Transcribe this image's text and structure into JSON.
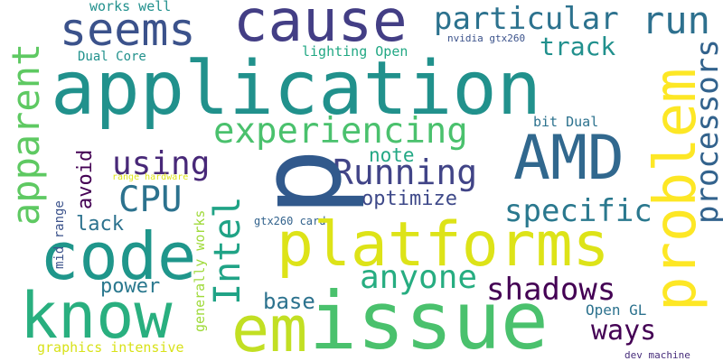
{
  "words": [
    {
      "text": "cause",
      "color": "#433e85"
    },
    {
      "text": "seems",
      "color": "#3b528b"
    },
    {
      "text": "particular",
      "color": "#2c728e"
    },
    {
      "text": "works well",
      "color": "#21908d"
    },
    {
      "text": "run",
      "color": "#2d708e"
    },
    {
      "text": "track",
      "color": "#21908d"
    },
    {
      "text": "nvidia gtx260",
      "color": "#3b528b"
    },
    {
      "text": "Dual Core",
      "color": "#21918c"
    },
    {
      "text": "lighting Open",
      "color": "#22a884"
    },
    {
      "text": "application",
      "color": "#21918c"
    },
    {
      "text": "problem",
      "color": "#fde725"
    },
    {
      "text": "experiencing",
      "color": "#4ac16d"
    },
    {
      "text": "processors",
      "color": "#33638d"
    },
    {
      "text": "apparent",
      "color": "#5ec962"
    },
    {
      "text": "avoid",
      "color": "#440154"
    },
    {
      "text": "mid range",
      "color": "#3b528b"
    },
    {
      "text": "range hardware",
      "color": "#dde318"
    },
    {
      "text": "note",
      "color": "#22a884"
    },
    {
      "text": "bit Dual",
      "color": "#2c728e"
    },
    {
      "text": "AMD",
      "color": "#31688e"
    },
    {
      "text": "p",
      "color": "#31598c"
    },
    {
      "text": "using",
      "color": "#482878"
    },
    {
      "text": "Running",
      "color": "#414487"
    },
    {
      "text": "CPU",
      "color": "#2c728e"
    },
    {
      "text": "optimize",
      "color": "#3e4989"
    },
    {
      "text": "specific",
      "color": "#2a788e"
    },
    {
      "text": "lack",
      "color": "#2c728e"
    },
    {
      "text": "Intel",
      "color": "#20a386"
    },
    {
      "text": "gtx260 card",
      "color": "#33638d"
    },
    {
      "text": "generally works",
      "color": "#9fda3a"
    },
    {
      "text": "code",
      "color": "#1f968b"
    },
    {
      "text": "platforms",
      "color": "#dde318"
    },
    {
      "text": "anyone",
      "color": "#27ad81"
    },
    {
      "text": "power",
      "color": "#2a788e"
    },
    {
      "text": "shadows",
      "color": "#440154"
    },
    {
      "text": "base",
      "color": "#2c728e"
    },
    {
      "text": "know",
      "color": "#29af7f"
    },
    {
      "text": "em",
      "color": "#c2df23"
    },
    {
      "text": "issue",
      "color": "#4ac16d"
    },
    {
      "text": "Open GL",
      "color": "#2c728e"
    },
    {
      "text": "ways",
      "color": "#440154"
    },
    {
      "text": "graphics intensive",
      "color": "#d8e219"
    },
    {
      "text": "dev machine",
      "color": "#472d7b"
    }
  ]
}
